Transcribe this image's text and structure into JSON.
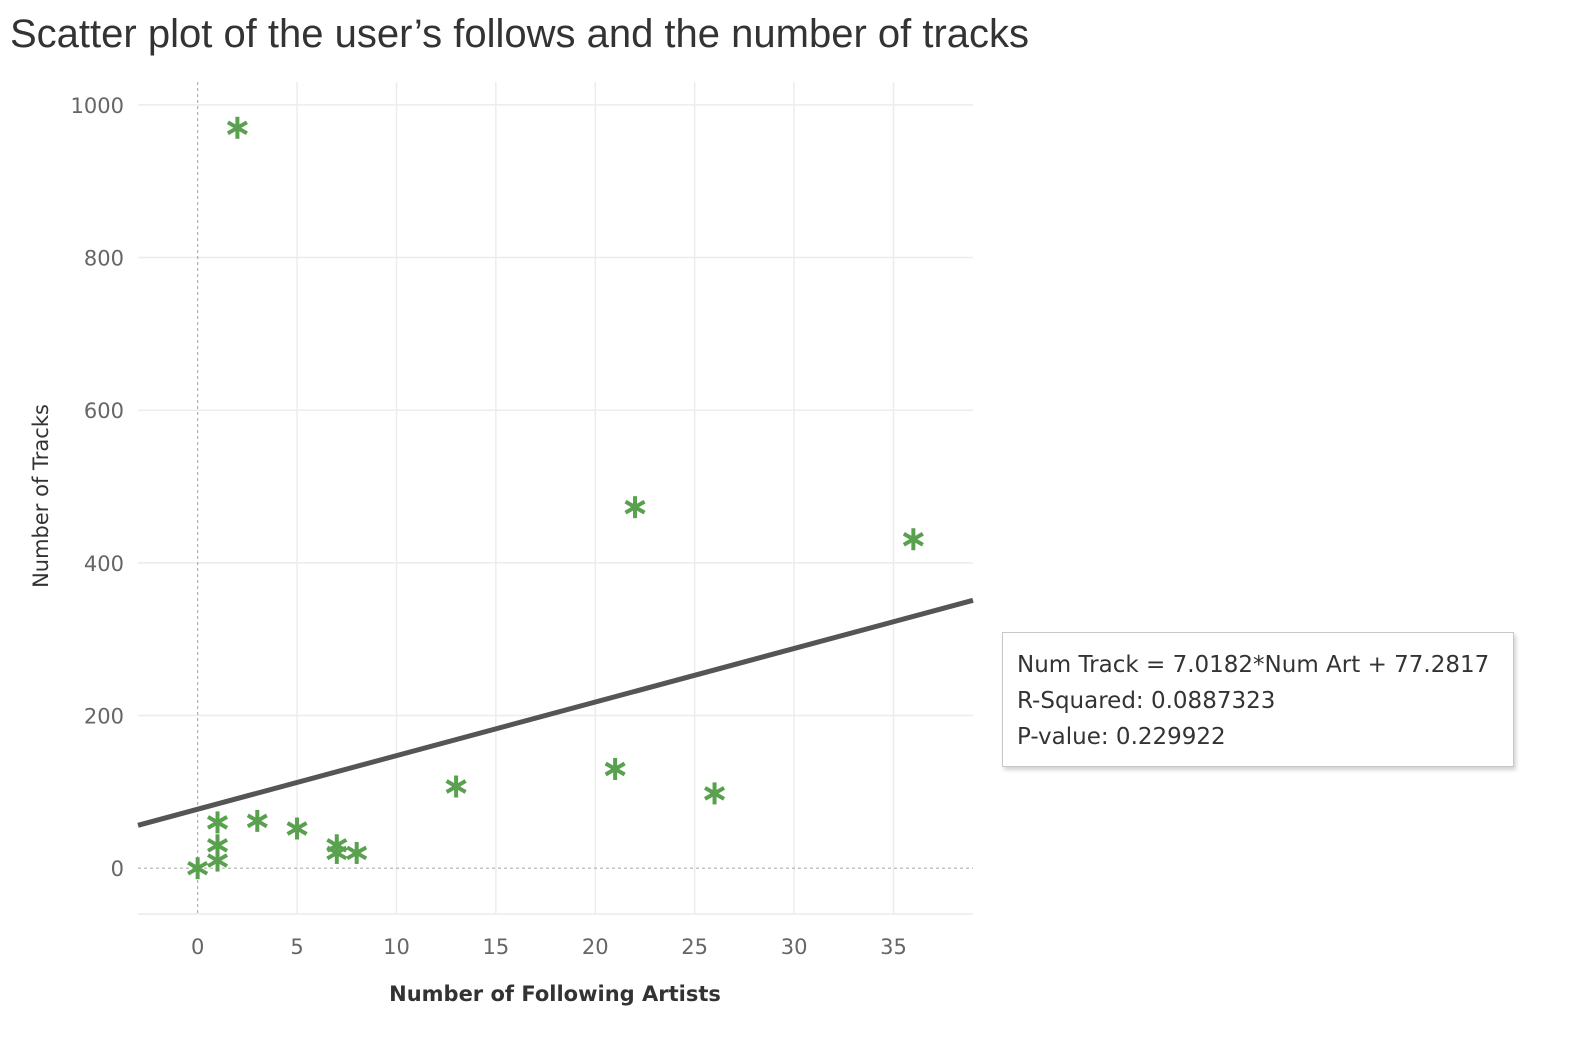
{
  "chart_data": {
    "type": "scatter",
    "title": "Scatter plot of the user’s follows and the number of tracks",
    "xlabel": "Number of Following Artists",
    "ylabel": "Number of Tracks",
    "xlim": [
      -3,
      39
    ],
    "ylim": [
      -60,
      1030
    ],
    "x_ticks": [
      0,
      5,
      10,
      15,
      20,
      25,
      30,
      35
    ],
    "y_ticks": [
      0,
      200,
      400,
      600,
      800,
      1000
    ],
    "grid": true,
    "marker": "asterisk",
    "colors": {
      "marker": "#59a14f",
      "trend_line": "#555555",
      "grid": "#ececec",
      "zero_line": "#b0b0b0"
    },
    "points": [
      {
        "x": 0,
        "y": 0
      },
      {
        "x": 1,
        "y": 10
      },
      {
        "x": 1,
        "y": 30
      },
      {
        "x": 1,
        "y": 60
      },
      {
        "x": 2,
        "y": 970
      },
      {
        "x": 3,
        "y": 62
      },
      {
        "x": 5,
        "y": 52
      },
      {
        "x": 7,
        "y": 30
      },
      {
        "x": 7,
        "y": 20
      },
      {
        "x": 8,
        "y": 20
      },
      {
        "x": 13,
        "y": 107
      },
      {
        "x": 21,
        "y": 130
      },
      {
        "x": 22,
        "y": 473
      },
      {
        "x": 26,
        "y": 98
      },
      {
        "x": 36,
        "y": 431
      }
    ],
    "trend_line": {
      "slope": 7.0182,
      "intercept": 77.2817
    },
    "annotation": [
      "Num Track = 7.0182*Num Art + 77.2817",
      "R-Squared: 0.0887323",
      "P-value: 0.229922"
    ]
  }
}
